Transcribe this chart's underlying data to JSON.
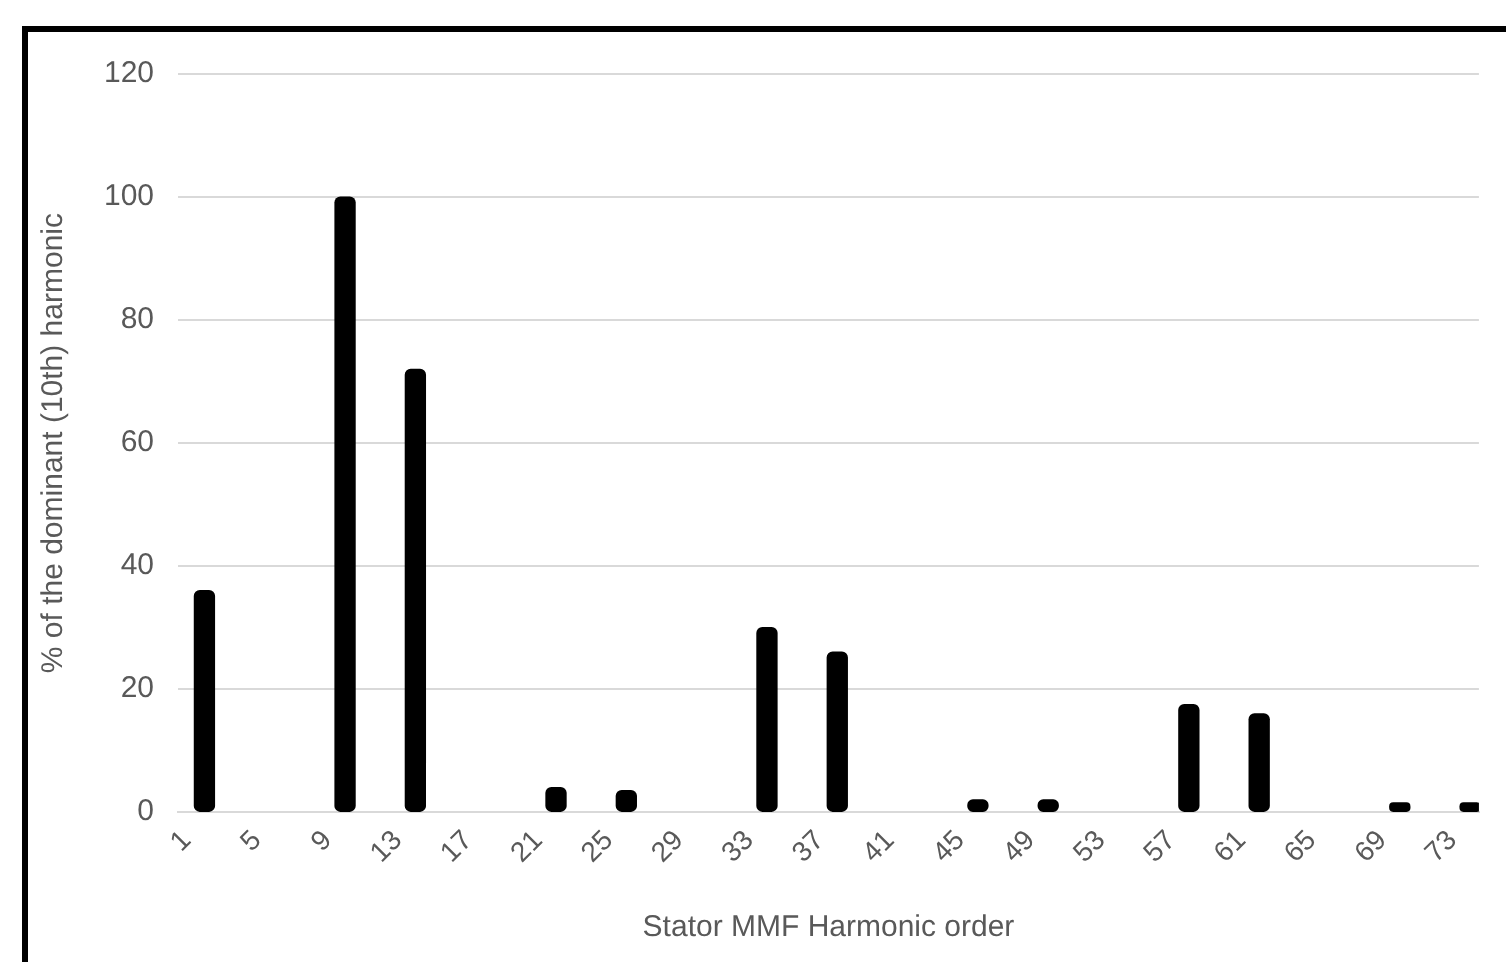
{
  "chart_data": {
    "type": "bar",
    "xlabel": "Stator MMF Harmonic order",
    "ylabel": "% of the dominant (10th) harmonic",
    "categories": [
      "1",
      null,
      null,
      null,
      "5",
      null,
      null,
      null,
      "9",
      null,
      null,
      null,
      "13",
      null,
      null,
      null,
      "17",
      null,
      null,
      null,
      "21",
      null,
      null,
      null,
      "25",
      null,
      null,
      null,
      "29",
      null,
      null,
      null,
      "33",
      null,
      null,
      null,
      "37",
      null,
      null,
      null,
      "41",
      null,
      null,
      null,
      "45",
      null,
      null,
      null,
      "49",
      null,
      null,
      null,
      "53",
      null,
      null,
      null,
      "57",
      null,
      null,
      null,
      "61",
      null,
      null,
      null,
      "65",
      null,
      null,
      null,
      "69",
      null,
      null,
      null,
      "73",
      null
    ],
    "values": [
      null,
      36,
      null,
      null,
      null,
      null,
      null,
      null,
      null,
      100,
      null,
      null,
      null,
      72,
      null,
      null,
      null,
      null,
      null,
      null,
      null,
      4,
      null,
      null,
      null,
      3.5,
      null,
      null,
      null,
      null,
      null,
      null,
      null,
      30,
      null,
      null,
      null,
      26,
      null,
      null,
      null,
      null,
      null,
      null,
      null,
      2,
      null,
      null,
      null,
      2,
      null,
      null,
      null,
      null,
      null,
      null,
      null,
      17.5,
      null,
      null,
      null,
      16,
      null,
      null,
      null,
      null,
      null,
      null,
      null,
      1.5,
      null,
      null,
      null,
      1.5
    ],
    "color": "#000000",
    "ylim": [
      0,
      120
    ],
    "yticks": [
      0,
      20,
      40,
      60,
      80,
      100,
      120
    ],
    "grid": "y"
  }
}
